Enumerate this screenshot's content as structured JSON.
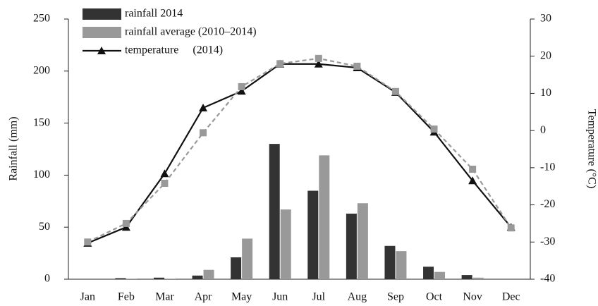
{
  "chart_data": {
    "type": "bar-line",
    "categories": [
      "Jan",
      "Feb",
      "Mar",
      "Apr",
      "May",
      "Jun",
      "Jul",
      "Aug",
      "Sep",
      "Oct",
      "Nov",
      "Dec"
    ],
    "ylabel": "Rainfall (mm)",
    "y2label": "Temperature (°C)",
    "ylim": [
      0,
      250
    ],
    "yticks": [
      0,
      50,
      100,
      150,
      200,
      250
    ],
    "y2lim": [
      -40,
      30
    ],
    "y2ticks": [
      -40,
      -30,
      -20,
      -10,
      0,
      10,
      20,
      30
    ],
    "legend": "top-left",
    "series": [
      {
        "name": "rainfall 2014",
        "type": "bar",
        "color": "#333333",
        "values": [
          0,
          1,
          1.5,
          3.5,
          21,
          130,
          85,
          63,
          32,
          12,
          4,
          0
        ]
      },
      {
        "name": "rainfall average (2010–2014)",
        "type": "bar",
        "color": "#999999",
        "values": [
          0,
          0.5,
          0.5,
          9,
          39,
          67,
          119,
          73,
          27,
          7,
          1.5,
          0
        ]
      },
      {
        "name": "temperature     (2014)",
        "type": "line",
        "axis": "y2",
        "color": "#111111",
        "marker": "triangle",
        "dashed": false,
        "values": [
          -30.3,
          -26,
          -11.6,
          6.1,
          10.6,
          17.9,
          17.9,
          16.9,
          10.3,
          -0.4,
          -13.5,
          -26
        ]
      },
      {
        "type": "line",
        "axis": "y2",
        "color": "#999999",
        "marker": "square",
        "dashed": true,
        "values": [
          -30,
          -25,
          -14.2,
          -0.6,
          11.8,
          18,
          19.4,
          17.3,
          10.5,
          0.4,
          -10.4,
          -26.2
        ]
      }
    ]
  }
}
